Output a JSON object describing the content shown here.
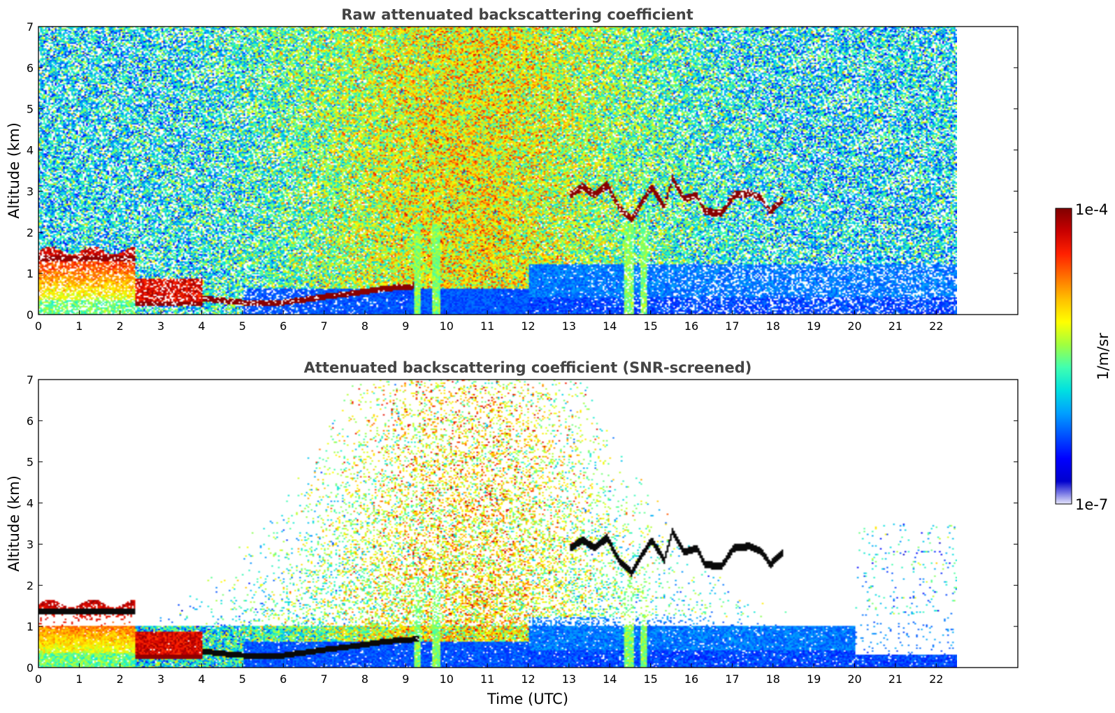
{
  "chart_data": [
    {
      "type": "heatmap",
      "title": "Raw attenuated backscattering coefficient",
      "xlabel": "",
      "ylabel": "Altitude (km)",
      "xlim": [
        0,
        24
      ],
      "ylim": [
        0,
        7
      ],
      "x_ticks": [
        "0",
        "1",
        "2",
        "3",
        "4",
        "5",
        "6",
        "7",
        "8",
        "9",
        "10",
        "11",
        "12",
        "13",
        "14",
        "15",
        "16",
        "17",
        "18",
        "19",
        "20",
        "21",
        "22"
      ],
      "y_ticks": [
        "0",
        "1",
        "2",
        "3",
        "4",
        "5",
        "6",
        "7"
      ],
      "data_end_time": 22.45,
      "layers": [
        {
          "feature": "boundary layer aerosol",
          "t": [
            0,
            2.3
          ],
          "alt": [
            0,
            1.6
          ],
          "value": "1e-5 to 1e-4"
        },
        {
          "feature": "low cloud",
          "t": [
            2.4,
            4.0
          ],
          "alt": [
            0.2,
            0.9
          ],
          "value": "~1e-4"
        },
        {
          "feature": "thin cloud",
          "t": [
            4.0,
            9.3
          ],
          "alt": [
            0.3,
            0.7
          ],
          "value": "~1e-4"
        },
        {
          "feature": "elevated cloud",
          "t": [
            13.0,
            18.3
          ],
          "alt": [
            2.3,
            3.3
          ],
          "value": "~1e-4"
        }
      ]
    },
    {
      "type": "heatmap",
      "title": "Attenuated backscattering coefficient (SNR-screened)",
      "xlabel": "Time (UTC)",
      "ylabel": "Altitude (km)",
      "xlim": [
        0,
        24
      ],
      "ylim": [
        0,
        7
      ],
      "x_ticks": [
        "0",
        "1",
        "2",
        "3",
        "4",
        "5",
        "6",
        "7",
        "8",
        "9",
        "10",
        "11",
        "12",
        "13",
        "14",
        "15",
        "16",
        "17",
        "18",
        "19",
        "20",
        "21",
        "22"
      ],
      "y_ticks": [
        "0",
        "1",
        "2",
        "3",
        "4",
        "5",
        "6",
        "7"
      ],
      "data_end_time": 22.45
    }
  ],
  "colorbar": {
    "label": "1/m/sr",
    "max_label": "1e-4",
    "min_label": "1e-7",
    "colors": [
      "#e6e6fa",
      "#0000cd",
      "#0000ff",
      "#0050ff",
      "#00a0ff",
      "#00e0e0",
      "#40ffb0",
      "#a0ff40",
      "#ffff00",
      "#ffc000",
      "#ff7000",
      "#ff2000",
      "#c80000",
      "#800000"
    ]
  }
}
